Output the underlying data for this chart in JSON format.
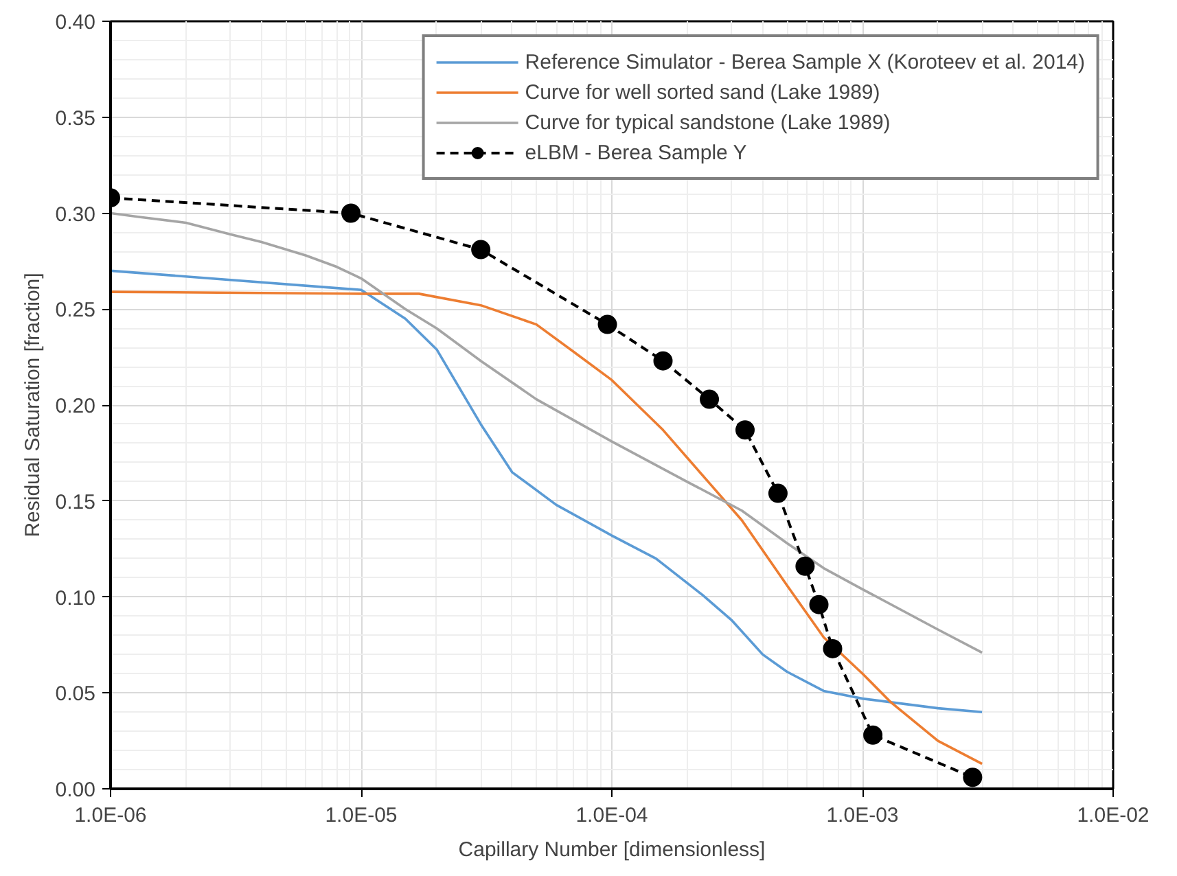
{
  "chart_data": {
    "type": "line",
    "xlabel": "Capillary Number [dimensionless]",
    "ylabel": "Residual Saturation [fraction]",
    "log": "x",
    "grid": true,
    "legend": "top right",
    "xlim": [
      1e-06,
      0.01
    ],
    "ylim": [
      0,
      0.4
    ],
    "xticks": [
      {
        "value": 1e-06,
        "label": "1.0E-06"
      },
      {
        "value": 1e-05,
        "label": "1.0E-05"
      },
      {
        "value": 0.0001,
        "label": "1.0E-04"
      },
      {
        "value": 0.001,
        "label": "1.0E-03"
      },
      {
        "value": 0.01,
        "label": "1.0E-02"
      }
    ],
    "yticks": [
      {
        "value": 0,
        "label": "0.00"
      },
      {
        "value": 0.05,
        "label": "0.05"
      },
      {
        "value": 0.1,
        "label": "0.10"
      },
      {
        "value": 0.15,
        "label": "0.15"
      },
      {
        "value": 0.2,
        "label": "0.20"
      },
      {
        "value": 0.25,
        "label": "0.25"
      },
      {
        "value": 0.3,
        "label": "0.30"
      },
      {
        "value": 0.35,
        "label": "0.35"
      },
      {
        "value": 0.4,
        "label": "0.40"
      }
    ],
    "series": [
      {
        "name": "Reference Simulator - Berea Sample X (Koroteev et al. 2014)",
        "color": "#5b9bd5",
        "marker": "none",
        "line_style": "solid",
        "x": [
          1e-06,
          1e-05,
          1.5e-05,
          2e-05,
          3e-05,
          4e-05,
          6e-05,
          0.0001,
          0.00015,
          0.00023,
          0.0003,
          0.0004,
          0.0005,
          0.0007,
          0.001,
          0.002,
          0.003
        ],
        "values": [
          0.27,
          0.26,
          0.245,
          0.229,
          0.19,
          0.165,
          0.148,
          0.132,
          0.12,
          0.101,
          0.088,
          0.07,
          0.061,
          0.051,
          0.047,
          0.042,
          0.04
        ]
      },
      {
        "name": "Curve for well sorted sand (Lake 1989)",
        "color": "#ed7d31",
        "marker": "none",
        "line_style": "solid",
        "x": [
          1e-06,
          1e-05,
          1.7e-05,
          3e-05,
          5e-05,
          7e-05,
          0.0001,
          0.00016,
          0.00025,
          0.00033,
          0.0005,
          0.0007,
          0.001,
          0.0013,
          0.002,
          0.003
        ],
        "values": [
          0.259,
          0.258,
          0.258,
          0.252,
          0.242,
          0.228,
          0.213,
          0.187,
          0.158,
          0.14,
          0.106,
          0.079,
          0.06,
          0.045,
          0.025,
          0.013
        ]
      },
      {
        "name": "Curve for typical sandstone (Lake 1989)",
        "color": "#a5a5a5",
        "marker": "none",
        "line_style": "solid",
        "x": [
          1e-06,
          1.3e-06,
          2e-06,
          3e-06,
          4e-06,
          6e-06,
          8e-06,
          1e-05,
          1.5e-05,
          2e-05,
          3e-05,
          5e-05,
          0.0001,
          0.0002,
          0.00033,
          0.0005,
          0.0007,
          0.001,
          0.002,
          0.003
        ],
        "values": [
          0.3,
          0.298,
          0.295,
          0.289,
          0.285,
          0.278,
          0.272,
          0.266,
          0.25,
          0.24,
          0.223,
          0.203,
          0.181,
          0.16,
          0.145,
          0.128,
          0.115,
          0.104,
          0.083,
          0.071
        ]
      },
      {
        "name": "eLBM - Berea Sample Y",
        "color": "#000000",
        "marker": "circle",
        "line_style": "dashed",
        "x": [
          1e-06,
          9.1e-06,
          3e-05,
          9.6e-05,
          0.00016,
          0.000245,
          0.00034,
          0.00046,
          0.00059,
          0.00067,
          0.00076,
          0.0011,
          0.00275
        ],
        "values": [
          0.308,
          0.3,
          0.281,
          0.242,
          0.223,
          0.203,
          0.187,
          0.154,
          0.116,
          0.096,
          0.073,
          0.028,
          0.006
        ]
      }
    ]
  }
}
